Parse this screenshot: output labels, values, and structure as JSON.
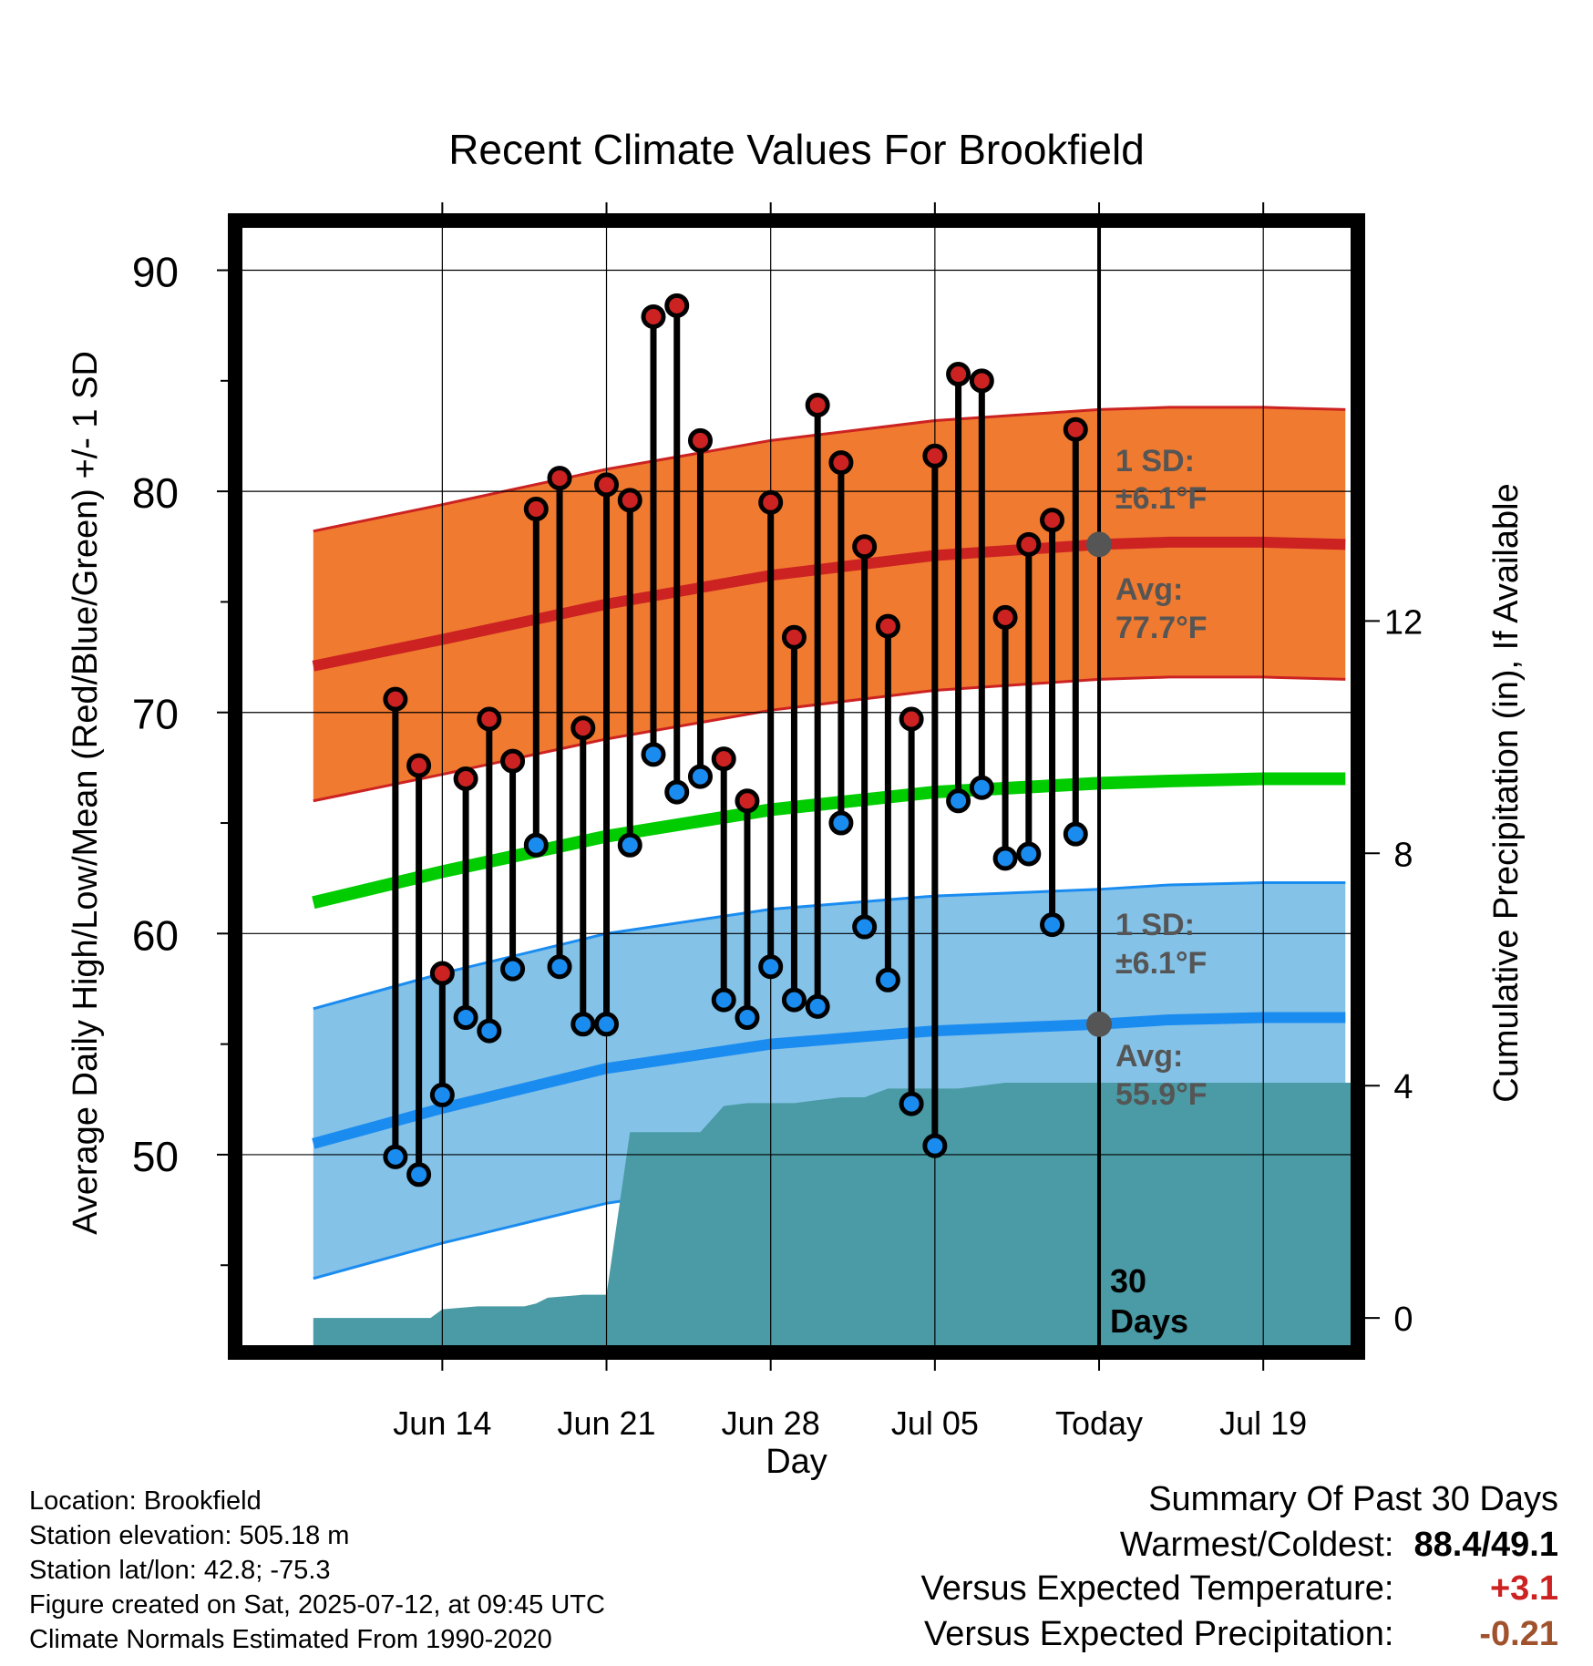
{
  "chart_data": {
    "type": "line",
    "title": "Recent Climate Values For Brookfield",
    "xlabel": "Day",
    "ylabel": "Average Daily High/Low/Mean (Red/Blue/Green) +/- 1 SD",
    "y2label": "Cumulative Precipitation (in), If Available",
    "ylim": [
      41.3,
      92
    ],
    "y_ticks": [
      50,
      60,
      70,
      80,
      90
    ],
    "y2lim": [
      -0.5,
      18.8
    ],
    "y2_ticks": [
      0,
      4,
      8,
      12
    ],
    "x_range_days": [
      -36.6,
      10.8
    ],
    "x_ticks": [
      {
        "day": -28,
        "label": "Jun 14"
      },
      {
        "day": -21,
        "label": "Jun 21"
      },
      {
        "day": -14,
        "label": "Jun 28"
      },
      {
        "day": -7,
        "label": "Jul 05"
      },
      {
        "day": 0,
        "label": "Today"
      },
      {
        "day": 7,
        "label": "Jul 19"
      }
    ],
    "grid": true,
    "daily": {
      "day": [
        -30,
        -29,
        -28,
        -27,
        -26,
        -25,
        -24,
        -23,
        -22,
        -21,
        -20,
        -19,
        -18,
        -17,
        -16,
        -15,
        -14,
        -13,
        -12,
        -11,
        -10,
        -9,
        -8,
        -7,
        -6,
        -5,
        -4,
        -3,
        -2,
        -1
      ],
      "high": [
        70.6,
        67.6,
        58.2,
        67.0,
        69.7,
        67.8,
        79.2,
        80.6,
        69.3,
        80.3,
        79.6,
        87.9,
        88.4,
        82.3,
        67.9,
        66.0,
        79.5,
        73.4,
        83.9,
        81.3,
        77.5,
        73.9,
        69.7,
        81.6,
        85.3,
        85.0,
        74.3,
        77.6,
        78.7,
        82.8
      ],
      "low": [
        49.9,
        49.1,
        52.7,
        56.2,
        55.6,
        58.4,
        64.0,
        58.5,
        55.9,
        55.9,
        64.0,
        68.1,
        66.4,
        67.1,
        57.0,
        56.2,
        58.5,
        57.0,
        56.7,
        65.0,
        60.3,
        57.9,
        52.3,
        50.4,
        66.0,
        66.6,
        63.4,
        63.6,
        60.4,
        64.5
      ]
    },
    "normals": {
      "day": [
        -33.5,
        -28,
        -21,
        -14,
        -7,
        0,
        3,
        7,
        10.5
      ],
      "avg_high": [
        72.1,
        73.3,
        74.9,
        76.2,
        77.1,
        77.6,
        77.7,
        77.7,
        77.6
      ],
      "avg_low": [
        50.5,
        52.1,
        53.9,
        55.0,
        55.6,
        55.9,
        56.1,
        56.2,
        56.2
      ],
      "avg_mean": [
        61.4,
        62.8,
        64.4,
        65.6,
        66.4,
        66.8,
        66.9,
        67.0,
        67.0
      ],
      "sd": 6.1
    },
    "precip": {
      "day": [
        -33.5,
        -28.5,
        -28,
        -26.5,
        -24.5,
        -24,
        -23.5,
        -22,
        -21,
        -20,
        -18,
        -17,
        -16,
        -15,
        -14,
        -13,
        -12,
        -11,
        -10,
        -9,
        -8,
        -7,
        -6,
        -5,
        -4,
        -2,
        0,
        5,
        10.8
      ],
      "cumulative": [
        0,
        0,
        0.15,
        0.2,
        0.2,
        0.25,
        0.35,
        0.4,
        0.4,
        3.2,
        3.2,
        3.2,
        3.65,
        3.7,
        3.7,
        3.7,
        3.75,
        3.8,
        3.8,
        3.95,
        3.95,
        3.95,
        3.95,
        4.0,
        4.05,
        4.05,
        4.05,
        4.05,
        4.05
      ]
    },
    "annotations": {
      "high_sd_label": "1 SD:",
      "high_sd_value": "±6.1°F",
      "high_avg_label": "Avg:",
      "high_avg_value": "77.7°F",
      "low_sd_label": "1 SD:",
      "low_sd_value": "±6.1°F",
      "low_avg_label": "Avg:",
      "low_avg_value": "55.9°F",
      "period_line1": "30",
      "period_line2": "Days"
    },
    "colors": {
      "high_band": "#f07a2f",
      "high_line": "#cc2222",
      "low_band": "#84c2e8",
      "low_line": "#1a8cf0",
      "mean_line": "#00cc00",
      "precip_fill": "#4a9ba5",
      "high_dot": "#cc2222",
      "low_dot": "#1a8cf0",
      "annotation": "#555555",
      "today_dot": "#555555"
    }
  },
  "footer": {
    "location": "Location: Brookfield",
    "elevation": "Station elevation: 505.18 m",
    "latlon": "Station lat/lon: 42.8; -75.3",
    "created": "Figure created on Sat, 2025-07-12, at 09:45 UTC",
    "normals": "Climate Normals Estimated From 1990-2020"
  },
  "summary": {
    "title": "Summary Of Past 30 Days",
    "warm_cold_label": "Warmest/Coldest:",
    "warm_cold_value": "88.4/49.1",
    "temp_label": "Versus Expected Temperature:",
    "temp_value": "+3.1",
    "temp_color": "#cc2222",
    "precip_label": "Versus Expected Precipitation:",
    "precip_value": "-0.21",
    "precip_color": "#a0522d"
  }
}
